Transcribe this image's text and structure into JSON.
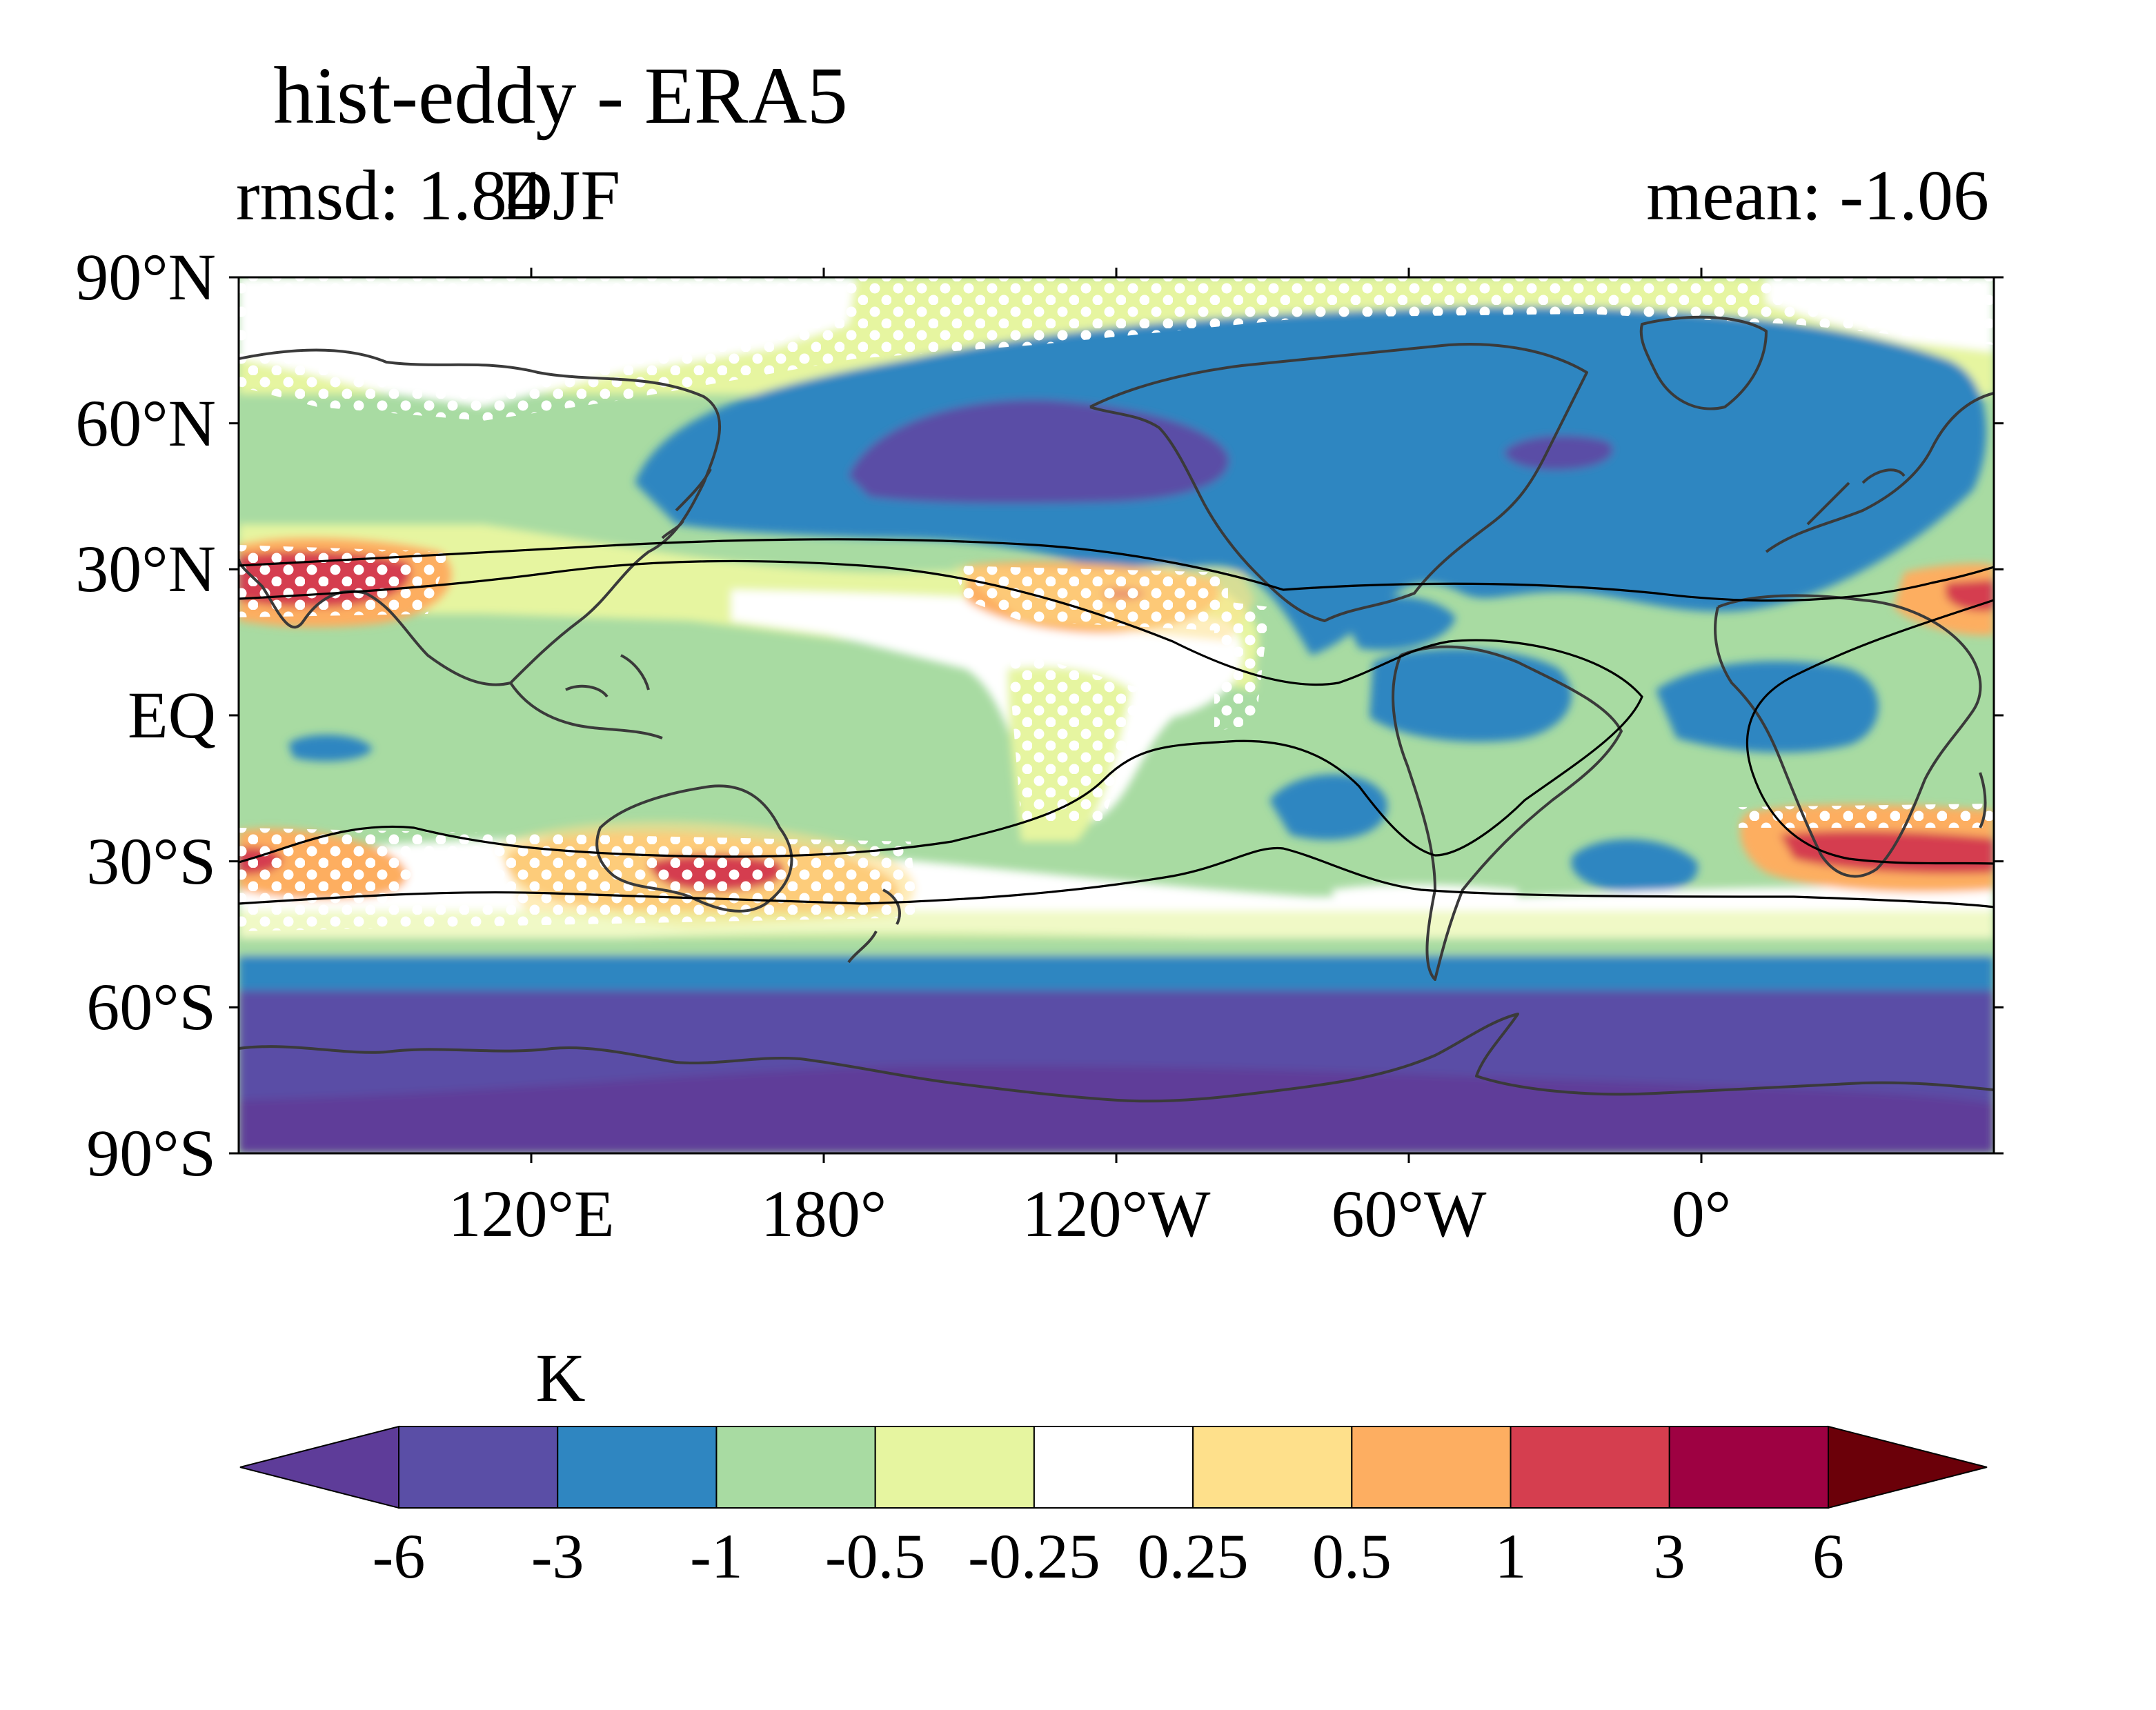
{
  "title": "hist-eddy - ERA5",
  "subtitle": {
    "left": "rmsd: 1.84",
    "center": "DJF",
    "right": "mean: -1.06"
  },
  "map": {
    "projection": "PlateCarree",
    "lon_range": [
      60,
      420
    ],
    "lat_range": [
      -90,
      90
    ],
    "lat_ticks": [
      {
        "value": 90,
        "label": "90°N"
      },
      {
        "value": 60,
        "label": "60°N"
      },
      {
        "value": 30,
        "label": "30°N"
      },
      {
        "value": 0,
        "label": "EQ"
      },
      {
        "value": -30,
        "label": "30°S"
      },
      {
        "value": -60,
        "label": "60°S"
      },
      {
        "value": -90,
        "label": "90°S"
      }
    ],
    "lon_ticks": [
      {
        "value": 120,
        "label": "120°E"
      },
      {
        "value": 180,
        "label": "180°"
      },
      {
        "value": 240,
        "label": "120°W"
      },
      {
        "value": 300,
        "label": "60°W"
      },
      {
        "value": 360,
        "label": "0°"
      }
    ],
    "field": "temperature difference, hist-eddy minus ERA5",
    "coastlines_color": "#3a3a3a",
    "contour_line_color": "#000000",
    "stippling": "white dots"
  },
  "colorbar": {
    "unit": "K",
    "ticks": [
      "-6",
      "-3",
      "-1",
      "-0.5",
      "-0.25",
      "0.25",
      "0.5",
      "1",
      "3",
      "6"
    ],
    "colors": [
      "#5e3c99",
      "#5a4ea6",
      "#2f86c1",
      "#a8dba2",
      "#e6f5a0",
      "#ffffff",
      "#fee08b",
      "#fdae61",
      "#d53e4f",
      "#9e0142",
      "#6b0009"
    ],
    "extend": "both"
  }
}
